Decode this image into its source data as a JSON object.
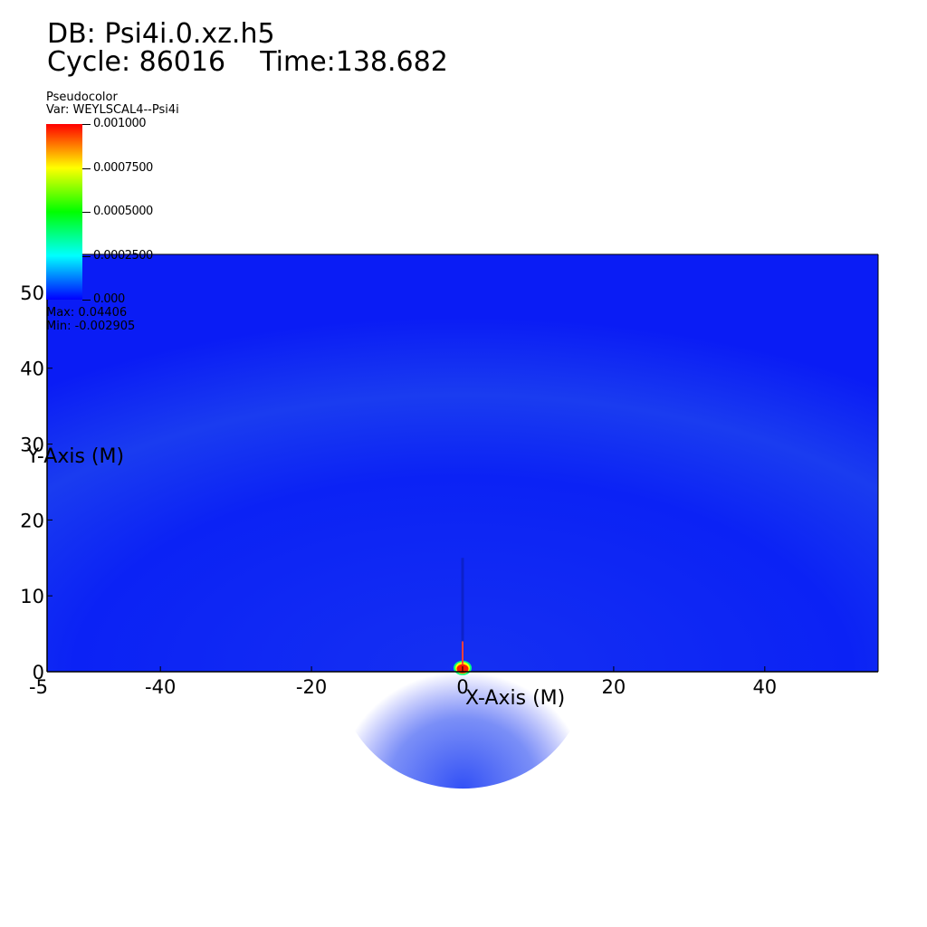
{
  "header": {
    "db_label": "DB: Psi4i.0.xz.h5",
    "cycle_label": "Cycle: 86016",
    "time_label": "Time:138.682"
  },
  "legend": {
    "plot_type": "Pseudocolor",
    "var_label": "Var: WEYLSCAL4--Psi4i",
    "tick_labels": [
      "0.001000",
      "0.0007500",
      "0.0005000",
      "0.0002500",
      "0.000"
    ],
    "tick_values": [
      0.001,
      0.00075,
      0.0005,
      0.00025,
      0.0
    ],
    "max_label": "Max: 0.04406",
    "min_label": "Min: -0.002905",
    "colormap": [
      "#ff0000",
      "#ffff00",
      "#00ff00",
      "#00ffff",
      "#0000ff"
    ]
  },
  "chart_data": {
    "type": "heatmap",
    "title": "",
    "xlabel": "X-Axis (M)",
    "ylabel": "Y-Axis (M)",
    "xlim": [
      -55,
      55
    ],
    "ylim": [
      0,
      55
    ],
    "x_ticks": [
      -40,
      -20,
      0,
      20,
      40
    ],
    "y_ticks": [
      0,
      10,
      20,
      30,
      40,
      50
    ],
    "x_edge_label": "-5",
    "variable": "WEYLSCAL4--Psi4i",
    "min": -0.002905,
    "max": 0.04406,
    "color_range": [
      0.0,
      0.001
    ],
    "background_color": "#0a1cf5",
    "hotspot": {
      "x": 0,
      "y": 0.5,
      "value_range": "max"
    },
    "grid": false
  }
}
